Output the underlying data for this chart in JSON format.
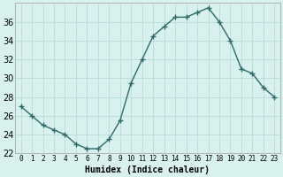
{
  "x": [
    0,
    1,
    2,
    3,
    4,
    5,
    6,
    7,
    8,
    9,
    10,
    11,
    12,
    13,
    14,
    15,
    16,
    17,
    18,
    19,
    20,
    21,
    22,
    23
  ],
  "y": [
    27,
    26,
    25,
    24.5,
    24,
    23,
    22.5,
    22.5,
    23.5,
    25.5,
    29.5,
    32,
    34.5,
    35.5,
    36.5,
    36.5,
    37,
    37.5,
    36,
    34,
    31,
    30.5,
    29,
    28
  ],
  "line_color": "#2d6b6b",
  "marker": "+",
  "marker_size": 4,
  "bg_color": "#d8f0ee",
  "grid_color": "#b8dbd8",
  "xlabel": "Humidex (Indice chaleur)",
  "ylim": [
    22,
    38
  ],
  "xlim": [
    -0.5,
    23.5
  ],
  "yticks": [
    22,
    24,
    26,
    28,
    30,
    32,
    34,
    36
  ],
  "xticks": [
    0,
    1,
    2,
    3,
    4,
    5,
    6,
    7,
    8,
    9,
    10,
    11,
    12,
    13,
    14,
    15,
    16,
    17,
    18,
    19,
    20,
    21,
    22,
    23
  ],
  "xlabel_fontsize": 7,
  "ytick_fontsize": 7,
  "xtick_fontsize": 5.5,
  "line_width": 1.0
}
